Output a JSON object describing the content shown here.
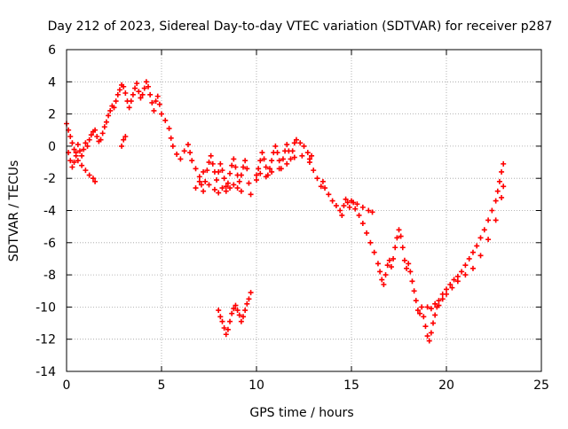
{
  "chart_data": {
    "type": "scatter",
    "title": "Day 212 of 2023, Sidereal Day-to-day VTEC variation (SDTVAR) for receiver p287",
    "xlabel": "GPS time / hours",
    "ylabel": "SDTVAR / TECUs",
    "xlim": [
      0,
      25
    ],
    "ylim": [
      -14,
      6
    ],
    "xticks": [
      0,
      5,
      10,
      15,
      20,
      25
    ],
    "yticks": [
      -14,
      -12,
      -10,
      -8,
      -6,
      -4,
      -2,
      0,
      2,
      4,
      6
    ],
    "grid": true,
    "marker": "+",
    "color": "#ff0000",
    "series": [
      {
        "name": "p287",
        "points": [
          [
            0.0,
            1.4
          ],
          [
            0.1,
            1.0
          ],
          [
            0.2,
            0.6
          ],
          [
            0.3,
            0.2
          ],
          [
            0.4,
            -0.2
          ],
          [
            0.5,
            -0.6
          ],
          [
            0.6,
            -0.9
          ],
          [
            0.8,
            -1.2
          ],
          [
            1.0,
            -1.5
          ],
          [
            1.2,
            -1.8
          ],
          [
            1.4,
            -2.0
          ],
          [
            1.5,
            -2.2
          ],
          [
            0.1,
            -0.4
          ],
          [
            0.2,
            -0.9
          ],
          [
            0.3,
            -1.3
          ],
          [
            0.4,
            -1.0
          ],
          [
            0.5,
            -0.4
          ],
          [
            0.6,
            0.1
          ],
          [
            0.7,
            -0.3
          ],
          [
            0.8,
            -0.6
          ],
          [
            0.9,
            -0.2
          ],
          [
            1.0,
            0.2
          ],
          [
            1.1,
            0.0
          ],
          [
            1.2,
            0.4
          ],
          [
            1.3,
            0.7
          ],
          [
            1.4,
            0.9
          ],
          [
            1.5,
            1.0
          ],
          [
            1.6,
            0.6
          ],
          [
            1.7,
            0.3
          ],
          [
            1.8,
            0.4
          ],
          [
            1.9,
            0.8
          ],
          [
            2.0,
            1.2
          ],
          [
            2.1,
            1.5
          ],
          [
            2.2,
            1.9
          ],
          [
            2.3,
            2.2
          ],
          [
            2.4,
            2.5
          ],
          [
            2.5,
            2.4
          ],
          [
            2.6,
            2.8
          ],
          [
            2.7,
            3.2
          ],
          [
            2.8,
            3.5
          ],
          [
            2.9,
            3.8
          ],
          [
            3.0,
            3.7
          ],
          [
            3.1,
            3.3
          ],
          [
            3.2,
            2.8
          ],
          [
            3.3,
            2.4
          ],
          [
            3.4,
            2.8
          ],
          [
            3.5,
            3.2
          ],
          [
            3.6,
            3.6
          ],
          [
            3.7,
            3.9
          ],
          [
            3.8,
            3.4
          ],
          [
            3.9,
            3.0
          ],
          [
            4.0,
            3.2
          ],
          [
            4.1,
            3.6
          ],
          [
            4.2,
            4.0
          ],
          [
            4.3,
            3.7
          ],
          [
            4.4,
            3.2
          ],
          [
            4.5,
            2.7
          ],
          [
            4.6,
            2.2
          ],
          [
            4.7,
            2.8
          ],
          [
            4.8,
            3.1
          ],
          [
            4.9,
            2.6
          ],
          [
            5.0,
            2.0
          ],
          [
            2.9,
            0.0
          ],
          [
            3.0,
            0.4
          ],
          [
            3.1,
            0.6
          ],
          [
            5.2,
            1.6
          ],
          [
            5.4,
            1.1
          ],
          [
            5.5,
            0.5
          ],
          [
            5.6,
            0.0
          ],
          [
            5.8,
            -0.5
          ],
          [
            6.0,
            -0.8
          ],
          [
            6.2,
            -0.3
          ],
          [
            6.4,
            0.1
          ],
          [
            6.5,
            -0.4
          ],
          [
            6.6,
            -0.9
          ],
          [
            6.8,
            -1.4
          ],
          [
            7.0,
            -1.9
          ],
          [
            7.1,
            -2.4
          ],
          [
            7.2,
            -2.8
          ],
          [
            7.3,
            -2.2
          ],
          [
            7.4,
            -1.5
          ],
          [
            7.5,
            -1.0
          ],
          [
            7.6,
            -0.6
          ],
          [
            7.7,
            -1.1
          ],
          [
            7.8,
            -1.6
          ],
          [
            7.9,
            -2.1
          ],
          [
            8.0,
            -1.6
          ],
          [
            8.1,
            -1.1
          ],
          [
            8.2,
            -1.5
          ],
          [
            8.3,
            -2.0
          ],
          [
            8.4,
            -2.5
          ],
          [
            8.5,
            -2.3
          ],
          [
            8.6,
            -1.7
          ],
          [
            8.7,
            -1.2
          ],
          [
            8.8,
            -0.8
          ],
          [
            8.9,
            -1.3
          ],
          [
            9.0,
            -1.8
          ],
          [
            9.1,
            -2.2
          ],
          [
            9.2,
            -1.8
          ],
          [
            9.3,
            -1.3
          ],
          [
            9.4,
            -0.9
          ],
          [
            9.5,
            -1.4
          ],
          [
            9.6,
            -2.3
          ],
          [
            9.7,
            -3.0
          ],
          [
            6.8,
            -2.6
          ],
          [
            7.0,
            -2.2
          ],
          [
            7.2,
            -1.6
          ],
          [
            7.5,
            -2.4
          ],
          [
            7.8,
            -2.7
          ],
          [
            8.0,
            -2.9
          ],
          [
            8.2,
            -2.6
          ],
          [
            8.4,
            -2.8
          ],
          [
            8.6,
            -2.6
          ],
          [
            8.8,
            -2.4
          ],
          [
            9.0,
            -2.6
          ],
          [
            9.2,
            -2.8
          ],
          [
            10.0,
            -1.8
          ],
          [
            10.1,
            -1.4
          ],
          [
            10.2,
            -0.9
          ],
          [
            10.3,
            -0.4
          ],
          [
            10.4,
            -0.8
          ],
          [
            10.5,
            -1.3
          ],
          [
            10.6,
            -1.8
          ],
          [
            10.7,
            -1.4
          ],
          [
            10.8,
            -0.9
          ],
          [
            10.9,
            -0.4
          ],
          [
            11.0,
            0.0
          ],
          [
            11.1,
            -0.4
          ],
          [
            11.2,
            -0.9
          ],
          [
            11.3,
            -1.4
          ],
          [
            11.4,
            -0.8
          ],
          [
            11.5,
            -0.3
          ],
          [
            11.6,
            0.1
          ],
          [
            11.7,
            -0.3
          ],
          [
            11.8,
            -0.8
          ],
          [
            11.9,
            -0.3
          ],
          [
            12.0,
            0.2
          ],
          [
            12.1,
            0.4
          ],
          [
            12.3,
            0.2
          ],
          [
            12.5,
            0.0
          ],
          [
            12.7,
            -0.4
          ],
          [
            12.9,
            -0.6
          ],
          [
            10.0,
            -2.1
          ],
          [
            10.2,
            -1.7
          ],
          [
            10.5,
            -1.9
          ],
          [
            10.8,
            -1.6
          ],
          [
            11.2,
            -1.4
          ],
          [
            11.6,
            -1.1
          ],
          [
            12.0,
            -0.7
          ],
          [
            12.4,
            -0.6
          ],
          [
            12.8,
            -0.8
          ],
          [
            12.8,
            -1.0
          ],
          [
            13.0,
            -1.5
          ],
          [
            13.2,
            -2.0
          ],
          [
            13.4,
            -2.5
          ],
          [
            13.5,
            -2.2
          ],
          [
            13.6,
            -2.6
          ],
          [
            13.8,
            -3.0
          ],
          [
            14.0,
            -3.4
          ],
          [
            14.2,
            -3.7
          ],
          [
            14.4,
            -4.0
          ],
          [
            14.5,
            -4.3
          ],
          [
            14.6,
            -3.7
          ],
          [
            14.7,
            -3.3
          ],
          [
            14.8,
            -3.5
          ],
          [
            14.9,
            -3.8
          ],
          [
            15.0,
            -3.4
          ],
          [
            15.1,
            -3.5
          ],
          [
            15.2,
            -3.9
          ],
          [
            15.4,
            -4.3
          ],
          [
            15.6,
            -4.8
          ],
          [
            15.8,
            -5.4
          ],
          [
            16.0,
            -6.0
          ],
          [
            16.2,
            -6.6
          ],
          [
            16.4,
            -7.3
          ],
          [
            16.5,
            -7.8
          ],
          [
            16.6,
            -8.3
          ],
          [
            16.7,
            -8.6
          ],
          [
            16.8,
            -8.0
          ],
          [
            16.9,
            -7.4
          ],
          [
            17.0,
            -7.1
          ],
          [
            17.1,
            -7.5
          ],
          [
            17.2,
            -7.0
          ],
          [
            17.3,
            -6.3
          ],
          [
            17.4,
            -5.7
          ],
          [
            17.5,
            -5.2
          ],
          [
            17.6,
            -5.6
          ],
          [
            17.7,
            -6.3
          ],
          [
            17.8,
            -7.1
          ],
          [
            17.9,
            -7.6
          ],
          [
            18.0,
            -7.3
          ],
          [
            18.1,
            -7.8
          ],
          [
            18.2,
            -8.4
          ],
          [
            18.3,
            -9.0
          ],
          [
            18.4,
            -9.6
          ],
          [
            18.5,
            -10.2
          ],
          [
            18.6,
            -10.4
          ],
          [
            18.7,
            -10.0
          ],
          [
            18.8,
            -10.6
          ],
          [
            18.9,
            -11.2
          ],
          [
            19.0,
            -11.8
          ],
          [
            19.1,
            -12.1
          ],
          [
            19.2,
            -11.6
          ],
          [
            19.3,
            -11.0
          ],
          [
            19.4,
            -10.5
          ],
          [
            19.5,
            -10.0
          ],
          [
            19.6,
            -9.6
          ],
          [
            19.8,
            -9.2
          ],
          [
            20.0,
            -8.9
          ],
          [
            20.2,
            -8.6
          ],
          [
            20.4,
            -8.3
          ],
          [
            20.6,
            -8.1
          ],
          [
            20.8,
            -7.8
          ],
          [
            21.0,
            -7.4
          ],
          [
            21.2,
            -7.0
          ],
          [
            21.4,
            -6.6
          ],
          [
            21.6,
            -6.2
          ],
          [
            21.8,
            -5.7
          ],
          [
            22.0,
            -5.2
          ],
          [
            22.2,
            -4.6
          ],
          [
            22.4,
            -4.0
          ],
          [
            22.6,
            -3.4
          ],
          [
            22.7,
            -2.8
          ],
          [
            22.8,
            -2.2
          ],
          [
            22.9,
            -1.6
          ],
          [
            23.0,
            -1.1
          ],
          [
            15.3,
            -3.6
          ],
          [
            15.6,
            -3.8
          ],
          [
            15.9,
            -4.0
          ],
          [
            16.1,
            -4.1
          ],
          [
            19.0,
            -10.0
          ],
          [
            19.2,
            -10.1
          ],
          [
            19.4,
            -9.8
          ],
          [
            19.6,
            -9.9
          ],
          [
            19.8,
            -9.5
          ],
          [
            20.0,
            -9.2
          ],
          [
            20.3,
            -8.8
          ],
          [
            20.6,
            -8.4
          ],
          [
            21.0,
            -8.0
          ],
          [
            21.4,
            -7.6
          ],
          [
            21.8,
            -6.8
          ],
          [
            22.2,
            -5.8
          ],
          [
            22.6,
            -4.6
          ],
          [
            22.9,
            -3.2
          ],
          [
            23.0,
            -2.5
          ],
          [
            8.0,
            -10.2
          ],
          [
            8.1,
            -10.6
          ],
          [
            8.2,
            -10.9
          ],
          [
            8.3,
            -11.3
          ],
          [
            8.4,
            -11.7
          ],
          [
            8.5,
            -11.4
          ],
          [
            8.6,
            -10.9
          ],
          [
            8.7,
            -10.4
          ],
          [
            8.8,
            -10.1
          ],
          [
            8.9,
            -9.9
          ],
          [
            9.0,
            -10.2
          ],
          [
            9.1,
            -10.5
          ],
          [
            9.2,
            -10.9
          ],
          [
            9.3,
            -10.6
          ],
          [
            9.4,
            -10.2
          ],
          [
            9.5,
            -9.8
          ],
          [
            9.6,
            -9.5
          ],
          [
            9.7,
            -9.1
          ]
        ]
      }
    ]
  }
}
